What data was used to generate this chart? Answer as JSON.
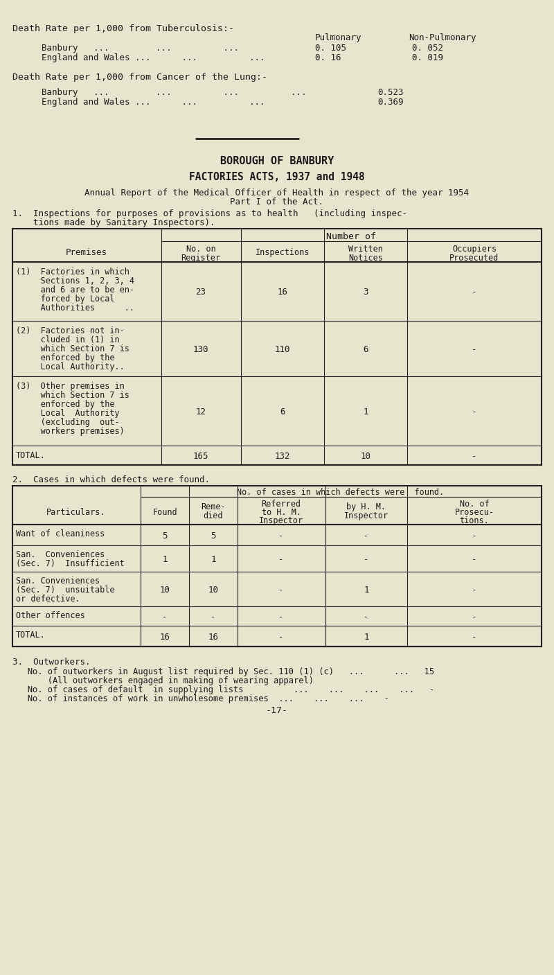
{
  "bg_color": "#e8e5ce",
  "text_color": "#1a1a1a",
  "tb_title": "Death Rate per 1,000 from Tuberculosis:-",
  "tb_header1": "Pulmonary",
  "tb_header2": "Non-Pulmonary",
  "tb_banbury_pul": "0. 105",
  "tb_banbury_nonpul": "0. 052",
  "tb_england_pul": "0. 16",
  "tb_england_nonpul": "0. 019",
  "lung_title": "Death Rate per 1,000 from Cancer of the Lung:-",
  "lung_banbury_val": "0.523",
  "lung_england_val": "0.369",
  "borough_title": "BOROUGH OF BANBURY",
  "acts_title": "FACTORIES ACTS, 1937 and 1948",
  "annual_line1": "Annual Report of the Medical Officer of Health in respect of the year 1954",
  "annual_line2": "Part I of the Act.",
  "insp_line1": "1.  Inspections for purposes of provisions as to health   (including inspec-",
  "insp_line2": "    tions made by Sanitary Inspectors).",
  "t1_number_of": "Number of",
  "t1_premises": "Premises",
  "t1_no_on": "No. on",
  "t1_register": "Register",
  "t1_inspections": "Inspections",
  "t1_written": "Written",
  "t1_notices": "Notices",
  "t1_occupiers": "Occupiers",
  "t1_prosecuted": "Prosecuted",
  "t1_rows": [
    {
      "label_lines": [
        "(1)  Factories in which",
        "     Sections 1, 2, 3, 4",
        "     and 6 are to be en-",
        "     forced by Local",
        "     Authorities      .."
      ],
      "reg": "23",
      "insp": "16",
      "written": "3",
      "occ": "-"
    },
    {
      "label_lines": [
        "(2)  Factories not in-",
        "     cluded in (1) in",
        "     which Section 7 is",
        "     enforced by the",
        "     Local Authority.."
      ],
      "reg": "130",
      "insp": "110",
      "written": "6",
      "occ": "-"
    },
    {
      "label_lines": [
        "(3)  Other premises in",
        "     which Section 7 is",
        "     enforced by the",
        "     Local  Authority",
        "     (excluding  out-",
        "     workers premises)"
      ],
      "reg": "12",
      "insp": "6",
      "written": "1",
      "occ": "-"
    },
    {
      "label_lines": [
        "TOTAL."
      ],
      "reg": "165",
      "insp": "132",
      "written": "10",
      "occ": "-"
    }
  ],
  "cases_heading": "2.  Cases in which defects were found.",
  "t2_header": "No. of cases in which defects were  found.",
  "t2_particulars": "Particulars.",
  "t2_found": "Found",
  "t2_remedied_1": "Reme-",
  "t2_remedied_2": "died",
  "t2_referred_1": "Referred",
  "t2_referred_2": "to H. M.",
  "t2_referred_3": "Inspector",
  "t2_hm_1": "by H. M.",
  "t2_hm_2": "Inspector",
  "t2_noof_1": "No. of",
  "t2_noof_2": "Prosecu-",
  "t2_noof_3": "tions.",
  "t2_rows": [
    {
      "label_lines": [
        "Want of cleaniness"
      ],
      "found": "5",
      "rem": "5",
      "ref": "-",
      "hm": "-",
      "pros": "-"
    },
    {
      "label_lines": [
        "San.  Conveniences",
        "(Sec. 7)  Insufficient"
      ],
      "found": "1",
      "rem": "1",
      "ref": "-",
      "hm": "-",
      "pros": "-"
    },
    {
      "label_lines": [
        "San. Conveniences",
        "(Sec. 7)  unsuitable",
        "or defective."
      ],
      "found": "10",
      "rem": "10",
      "ref": "-",
      "hm": "1",
      "pros": "-"
    },
    {
      "label_lines": [
        "Other offences"
      ],
      "found": "-",
      "rem": "-",
      "ref": "-",
      "hm": "-",
      "pros": "-"
    },
    {
      "label_lines": [
        "TOTAL."
      ],
      "found": "16",
      "rem": "16",
      "ref": "-",
      "hm": "1",
      "pros": "-"
    }
  ],
  "ow_title": "3.  Outworkers.",
  "ow_line1": "   No. of outworkers in August list required by Sec. 110 (1) (c)   ...      ...   15",
  "ow_line2": "       (All outworkers engaged in making of wearing apparel)",
  "ow_line3": "   No. of cases of default  in supplying lists          ...    ...    ...    ...   -",
  "ow_line4": "   No. of instances of work in unwholesome premises  ...    ...    ...    -",
  "page_num": "-17-"
}
